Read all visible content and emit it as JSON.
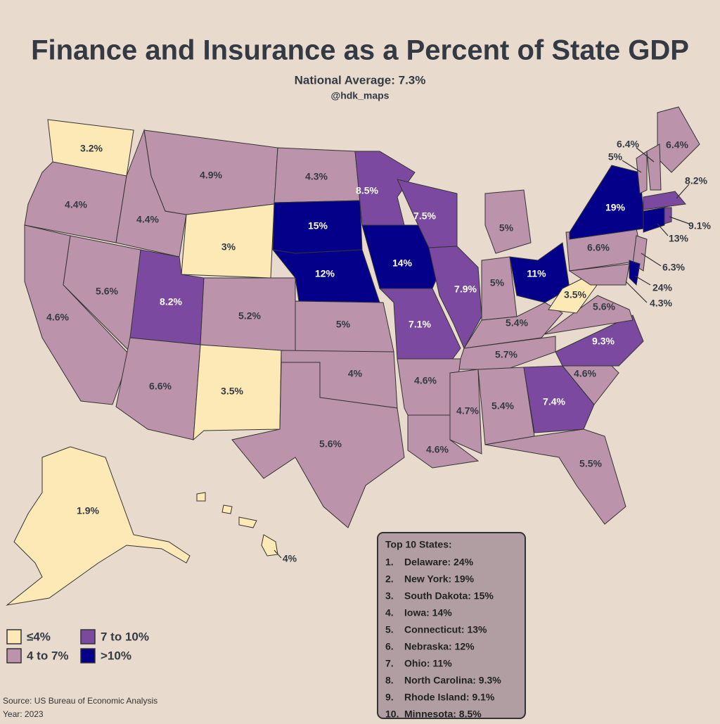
{
  "header": {
    "title": "Finance and Insurance as a Percent of State GDP",
    "subtitle": "National Average: 7.3%",
    "credit": "@hdk_maps"
  },
  "map": {
    "regions": [
      {
        "label": "3.2%",
        "color": "#fde9b5"
      },
      {
        "label": "4.4%",
        "color": "#bb93ab"
      },
      {
        "label": "4.6%",
        "color": "#bb93ab"
      },
      {
        "label": "5.6%",
        "color": "#bb93ab"
      },
      {
        "label": "4.4%",
        "color": "#bb93ab"
      },
      {
        "label": "4.9%",
        "color": "#bb93ab"
      },
      {
        "label": "3%",
        "color": "#fde9b5"
      },
      {
        "label": "8.2%",
        "color": "#7b4aa0"
      },
      {
        "label": "6.6%",
        "color": "#bb93ab"
      },
      {
        "label": "5.2%",
        "color": "#bb93ab"
      },
      {
        "label": "3.5%",
        "color": "#fde9b5"
      },
      {
        "label": "4.3%",
        "color": "#bb93ab"
      },
      {
        "label": "15%",
        "color": "#05008a"
      },
      {
        "label": "12%",
        "color": "#05008a"
      },
      {
        "label": "5%",
        "color": "#bb93ab"
      },
      {
        "label": "4%",
        "color": "#bb93ab"
      },
      {
        "label": "5.6%",
        "color": "#bb93ab"
      },
      {
        "label": "8.5%",
        "color": "#7b4aa0"
      },
      {
        "label": "14%",
        "color": "#05008a"
      },
      {
        "label": "7.1%",
        "color": "#7b4aa0"
      },
      {
        "label": "7.5%",
        "color": "#7b4aa0"
      },
      {
        "label": "7.9%",
        "color": "#7b4aa0"
      },
      {
        "label": "5%",
        "color": "#bb93ab"
      },
      {
        "label": "5%",
        "color": "#bb93ab"
      },
      {
        "label": "11%",
        "color": "#05008a"
      },
      {
        "label": "5.4%",
        "color": "#bb93ab"
      },
      {
        "label": "5.7%",
        "color": "#bb93ab"
      },
      {
        "label": "4.6%",
        "color": "#bb93ab"
      },
      {
        "label": "4.6%",
        "color": "#bb93ab"
      },
      {
        "label": "4.7%",
        "color": "#bb93ab"
      },
      {
        "label": "5.4%",
        "color": "#bb93ab"
      },
      {
        "label": "7.4%",
        "color": "#7b4aa0"
      },
      {
        "label": "5.5%",
        "color": "#bb93ab"
      },
      {
        "label": "4.6%",
        "color": "#bb93ab"
      },
      {
        "label": "9.3%",
        "color": "#7b4aa0"
      },
      {
        "label": "5.6%",
        "color": "#bb93ab"
      },
      {
        "label": "3.5%",
        "color": "#fde9b5"
      },
      {
        "label": "6.6%",
        "color": "#bb93ab"
      },
      {
        "label": "19%",
        "color": "#05008a"
      },
      {
        "label": "6.4%",
        "color": "#bb93ab"
      },
      {
        "label": "6.4%",
        "color": "#bb93ab"
      },
      {
        "label": "5%",
        "color": "#bb93ab"
      },
      {
        "label": "8.2%",
        "color": "#7b4aa0"
      },
      {
        "label": "13%",
        "color": "#05008a"
      },
      {
        "label": "9.1%",
        "color": "#7b4aa0"
      },
      {
        "label": "6.3%",
        "color": "#bb93ab"
      },
      {
        "label": "24%",
        "color": "#05008a"
      },
      {
        "label": "4.3%",
        "color": "#bb93ab"
      },
      {
        "label": "1.9%",
        "color": "#fde9b5"
      },
      {
        "label": "4%",
        "color": "#fde9b5"
      }
    ]
  },
  "legend": [
    {
      "label": "≤4%",
      "color": "#fde9b5"
    },
    {
      "label": "7 to 10%",
      "color": "#7b4aa0"
    },
    {
      "label": "4 to 7%",
      "color": "#bb93ab"
    },
    {
      "label": ">10%",
      "color": "#05008a"
    }
  ],
  "top10": {
    "title": "Top 10 States:",
    "items": [
      {
        "rank": "1.",
        "text": "Delaware: 24%"
      },
      {
        "rank": "2.",
        "text": "New York: 19%"
      },
      {
        "rank": "3.",
        "text": "South Dakota: 15%"
      },
      {
        "rank": "4.",
        "text": "Iowa: 14%"
      },
      {
        "rank": "5.",
        "text": "Connecticut: 13%"
      },
      {
        "rank": "6.",
        "text": "Nebraska: 12%"
      },
      {
        "rank": "7.",
        "text": "Ohio: 11%"
      },
      {
        "rank": "8.",
        "text": "North Carolina: 9.3%"
      },
      {
        "rank": "9.",
        "text": "Rhode Island: 9.1%"
      },
      {
        "rank": "10.",
        "text": "Minnesota: 8.5%"
      }
    ]
  },
  "footer": {
    "source": "Source: US Bureau of Economic Analysis",
    "year": "Year: 2023"
  }
}
